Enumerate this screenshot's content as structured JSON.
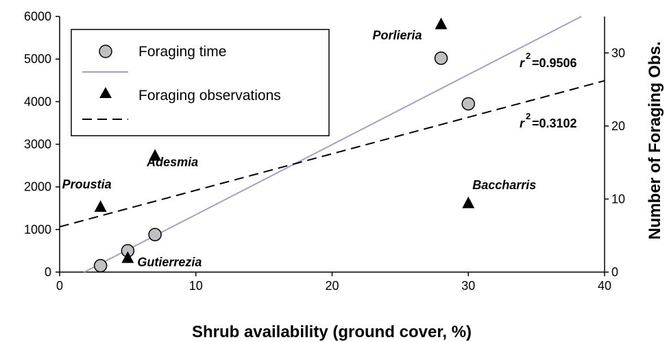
{
  "chart_data": {
    "type": "scatter",
    "xlabel": "Shrub availability (ground cover, %)",
    "ylabel_right": "Number of Foraging Obs.",
    "xlim": [
      0,
      40
    ],
    "ylim_left": [
      0,
      6000
    ],
    "ylim_right": [
      0,
      35
    ],
    "x_ticks": [
      "0",
      "10",
      "20",
      "30",
      "40"
    ],
    "y_left_ticks": [
      "0",
      "1000",
      "2000",
      "3000",
      "4000",
      "5000",
      "6000"
    ],
    "y_right_ticks": [
      "0",
      "10",
      "20",
      "30"
    ],
    "legend_position": "top-left",
    "grid": false,
    "series": [
      {
        "name": "Foraging time",
        "axis": "left",
        "marker": "circle",
        "color": "#c0c0c0",
        "points": [
          {
            "x": 3,
            "y": 150
          },
          {
            "x": 5,
            "y": 500
          },
          {
            "x": 7,
            "y": 880
          },
          {
            "x": 28,
            "y": 5020
          },
          {
            "x": 30,
            "y": 3950
          }
        ]
      },
      {
        "name": "Foraging observations",
        "axis": "right",
        "marker": "triangle",
        "color": "#000000",
        "points": [
          {
            "x": 3,
            "y": 9
          },
          {
            "x": 5,
            "y": 2
          },
          {
            "x": 7,
            "y": 16
          },
          {
            "x": 28,
            "y": 34
          },
          {
            "x": 30,
            "y": 9.5
          }
        ]
      }
    ],
    "trendlines": [
      {
        "series": "Foraging time",
        "axis": "left",
        "style": "solid",
        "color": "#a0a0c8",
        "x": [
          1.8,
          38.3
        ],
        "y": [
          0,
          6000
        ],
        "r2_label": "=0.9506"
      },
      {
        "series": "Foraging observations",
        "axis": "right",
        "style": "dashed",
        "color": "#000000",
        "x": [
          0,
          40
        ],
        "y": [
          6.2,
          26.2
        ],
        "r2_label": "=0.3102"
      }
    ],
    "annotations": [
      {
        "text": "Proustia",
        "x": 3
      },
      {
        "text": "Gutierrezia",
        "x": 5
      },
      {
        "text": "Adesmia",
        "x": 7
      },
      {
        "text": "Porlieria",
        "x": 28
      },
      {
        "text": "Baccharris",
        "x": 30
      }
    ]
  }
}
